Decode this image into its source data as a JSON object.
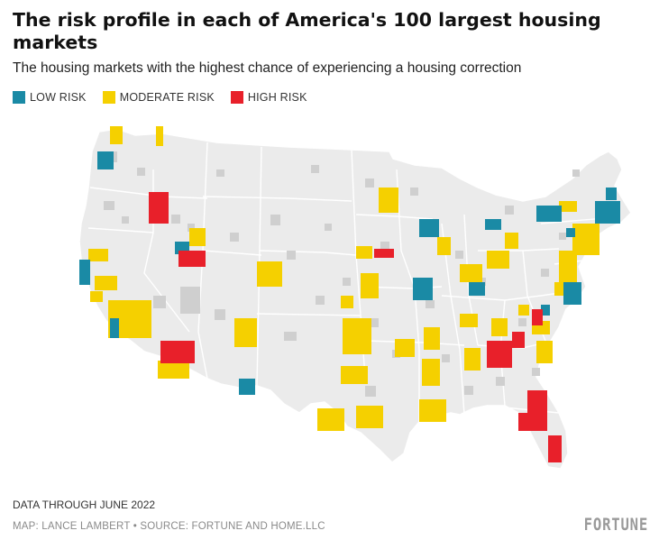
{
  "title": "The risk profile in each of America's 100 largest housing markets",
  "subtitle": "The housing markets with the highest chance of experiencing a housing correction",
  "legend": [
    {
      "label": "LOW RISK",
      "color": "#1a8aa5"
    },
    {
      "label": "MODERATE RISK",
      "color": "#f5d000"
    },
    {
      "label": "HIGH RISK",
      "color": "#e8202a"
    }
  ],
  "colors": {
    "land": "#ebebeb",
    "state_border": "#ffffff",
    "other_county": "#cfcfcf",
    "low": "#1a8aa5",
    "moderate": "#f5d000",
    "high": "#e8202a"
  },
  "footnote": "DATA THROUGH JUNE 2022",
  "credit": "MAP: LANCE LAMBERT • SOURCE: FORTUNE AND HOME.LLC",
  "brand": "FORTUNE"
}
